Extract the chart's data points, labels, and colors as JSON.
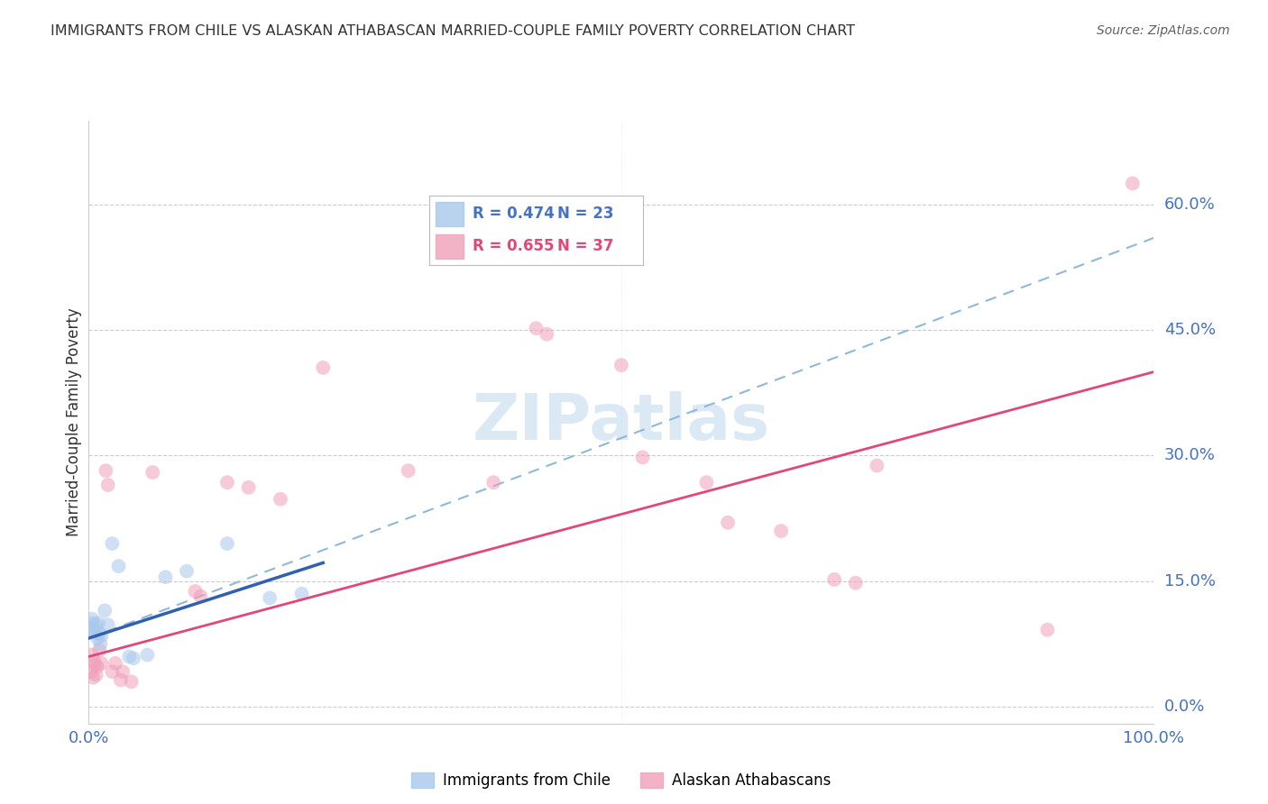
{
  "title": "IMMIGRANTS FROM CHILE VS ALASKAN ATHABASCAN MARRIED-COUPLE FAMILY POVERTY CORRELATION CHART",
  "source": "Source: ZipAtlas.com",
  "ylabel": "Married-Couple Family Poverty",
  "xlim": [
    0,
    1.0
  ],
  "ylim": [
    -0.02,
    0.7
  ],
  "yticks": [
    0.0,
    0.15,
    0.3,
    0.45,
    0.6
  ],
  "ytick_labels": [
    "0.0%",
    "15.0%",
    "30.0%",
    "45.0%",
    "60.0%"
  ],
  "xticks": [
    0.0,
    1.0
  ],
  "xtick_labels": [
    "0.0%",
    "100.0%"
  ],
  "legend_entries": [
    {
      "label": "Immigrants from Chile",
      "R": "0.474",
      "N": "23",
      "color": "#a8c8ec"
    },
    {
      "label": "Alaskan Athabascans",
      "R": "0.655",
      "N": "37",
      "color": "#f0a0b8"
    }
  ],
  "chile_points": [
    [
      0.002,
      0.095
    ],
    [
      0.003,
      0.105
    ],
    [
      0.004,
      0.1
    ],
    [
      0.005,
      0.092
    ],
    [
      0.006,
      0.088
    ],
    [
      0.007,
      0.098
    ],
    [
      0.008,
      0.082
    ],
    [
      0.009,
      0.1
    ],
    [
      0.01,
      0.088
    ],
    [
      0.011,
      0.075
    ],
    [
      0.012,
      0.085
    ],
    [
      0.015,
      0.115
    ],
    [
      0.018,
      0.098
    ],
    [
      0.022,
      0.195
    ],
    [
      0.028,
      0.168
    ],
    [
      0.038,
      0.06
    ],
    [
      0.042,
      0.058
    ],
    [
      0.055,
      0.062
    ],
    [
      0.072,
      0.155
    ],
    [
      0.092,
      0.162
    ],
    [
      0.13,
      0.195
    ],
    [
      0.17,
      0.13
    ],
    [
      0.2,
      0.135
    ]
  ],
  "athabascan_points": [
    [
      0.002,
      0.042
    ],
    [
      0.003,
      0.062
    ],
    [
      0.004,
      0.035
    ],
    [
      0.005,
      0.055
    ],
    [
      0.006,
      0.05
    ],
    [
      0.007,
      0.038
    ],
    [
      0.008,
      0.048
    ],
    [
      0.01,
      0.068
    ],
    [
      0.012,
      0.052
    ],
    [
      0.016,
      0.282
    ],
    [
      0.018,
      0.265
    ],
    [
      0.022,
      0.042
    ],
    [
      0.025,
      0.052
    ],
    [
      0.03,
      0.032
    ],
    [
      0.032,
      0.042
    ],
    [
      0.04,
      0.03
    ],
    [
      0.06,
      0.28
    ],
    [
      0.1,
      0.138
    ],
    [
      0.105,
      0.132
    ],
    [
      0.13,
      0.268
    ],
    [
      0.15,
      0.262
    ],
    [
      0.18,
      0.248
    ],
    [
      0.22,
      0.405
    ],
    [
      0.3,
      0.282
    ],
    [
      0.38,
      0.268
    ],
    [
      0.42,
      0.452
    ],
    [
      0.43,
      0.445
    ],
    [
      0.5,
      0.408
    ],
    [
      0.52,
      0.298
    ],
    [
      0.58,
      0.268
    ],
    [
      0.6,
      0.22
    ],
    [
      0.65,
      0.21
    ],
    [
      0.7,
      0.152
    ],
    [
      0.72,
      0.148
    ],
    [
      0.9,
      0.092
    ],
    [
      0.98,
      0.625
    ],
    [
      0.74,
      0.288
    ]
  ],
  "chile_line": {
    "x0": 0.0,
    "y0": 0.082,
    "x1": 0.22,
    "y1": 0.172,
    "color": "#3060b0",
    "lw": 2.5
  },
  "athabascan_line": {
    "x0": 0.0,
    "y0": 0.06,
    "x1": 1.0,
    "y1": 0.4,
    "color": "#e04878",
    "lw": 2.0
  },
  "dashed_line": {
    "x0": 0.0,
    "y0": 0.082,
    "x1": 1.0,
    "y1": 0.56,
    "color": "#90b8d8",
    "lw": 1.5
  },
  "background_color": "#ffffff",
  "grid_color": "#cccccc",
  "title_color": "#333333",
  "axis_tick_color": "#4472c4",
  "ylabel_color": "#333333",
  "scatter_alpha": 0.55,
  "scatter_size": 130,
  "watermark_text": "ZIPatlas",
  "watermark_color": "#b8d4ec",
  "watermark_alpha": 0.5
}
